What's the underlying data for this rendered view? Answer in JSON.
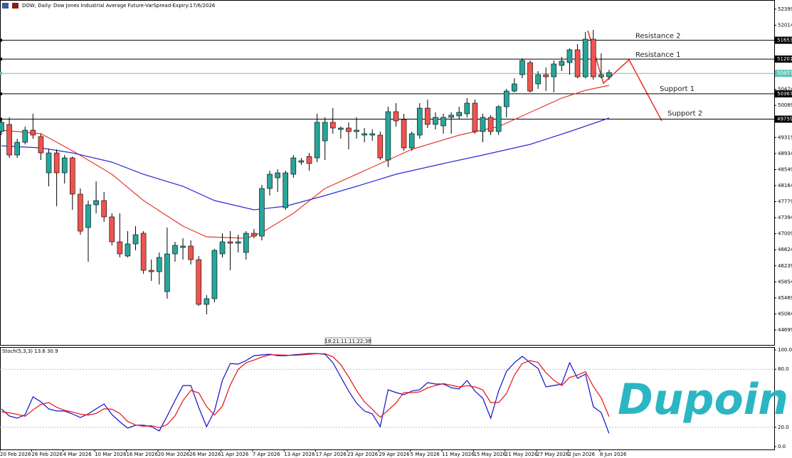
{
  "chart_data": {
    "type": "candlestick",
    "title": "DOW, Daily:  Dow Jones Industrial Average Future-VarSpread-Expiry:17/6/2026",
    "timer": "18:21:11:11:22:38",
    "categories": [
      "20 Feb 2026",
      null,
      null,
      null,
      "26 Feb 2026",
      null,
      null,
      null,
      "4 Mar 2026",
      null,
      null,
      null,
      "10 Mar 2026",
      null,
      null,
      null,
      "16 Mar 2026",
      null,
      null,
      null,
      "20 Mar 2026",
      null,
      null,
      null,
      "26 Mar 2026",
      null,
      null,
      null,
      "1 Apr 2026",
      null,
      null,
      null,
      "7 Apr 2026",
      null,
      null,
      null,
      "13 Apr 2026",
      null,
      null,
      null,
      "17 Apr 2026",
      null,
      null,
      null,
      "23 Apr 2026",
      null,
      null,
      null,
      "29 Apr 2026",
      null,
      null,
      null,
      "5 May 2026",
      null,
      null,
      null,
      "11 May 2026",
      null,
      null,
      null,
      "15 May 2026",
      null,
      null,
      null,
      "21 May 2026",
      null,
      null,
      null,
      "27 May 2026",
      null,
      null,
      null,
      "2 Jun 2026",
      null,
      null,
      null,
      "8 Jun 2026",
      null
    ],
    "ohlc": [
      [
        49461,
        49751,
        49376,
        49683
      ],
      [
        49632,
        49802,
        48829,
        48898
      ],
      [
        48898,
        49290,
        48829,
        49205
      ],
      [
        49205,
        49581,
        49154,
        49495
      ],
      [
        49495,
        49888,
        49290,
        49376
      ],
      [
        49342,
        49410,
        48778,
        48949
      ],
      [
        48471,
        49034,
        48147,
        48949
      ],
      [
        48949,
        49034,
        47669,
        48471
      ],
      [
        48471,
        48898,
        48215,
        48829
      ],
      [
        48829,
        48864,
        47583,
        47959
      ],
      [
        47959,
        48095,
        46986,
        47071
      ],
      [
        47157,
        47805,
        46337,
        47703
      ],
      [
        47703,
        48266,
        47498,
        47805
      ],
      [
        47805,
        48010,
        47293,
        47413
      ],
      [
        47413,
        47498,
        46730,
        46815
      ],
      [
        46815,
        47498,
        46440,
        46525
      ],
      [
        46474,
        47071,
        46440,
        46764
      ],
      [
        46764,
        47191,
        46610,
        46986
      ],
      [
        47020,
        47071,
        46047,
        46132
      ],
      [
        46132,
        46388,
        45876,
        46098
      ],
      [
        46098,
        46559,
        45791,
        46440
      ],
      [
        45620,
        47157,
        45450,
        46525
      ],
      [
        46525,
        46815,
        46337,
        46730
      ],
      [
        46679,
        46901,
        46388,
        46713
      ],
      [
        46713,
        46849,
        46269,
        46388
      ],
      [
        46388,
        46474,
        45279,
        45313
      ],
      [
        45313,
        45535,
        45074,
        45450
      ],
      [
        45450,
        46644,
        45364,
        46610
      ],
      [
        46525,
        47020,
        46440,
        46815
      ],
      [
        46815,
        47071,
        46132,
        46781
      ],
      [
        46781,
        46986,
        46559,
        46815
      ],
      [
        46559,
        47071,
        46388,
        47020
      ],
      [
        47020,
        47122,
        46901,
        46952
      ],
      [
        46952,
        48181,
        46849,
        48095
      ],
      [
        48095,
        48522,
        47925,
        48437
      ],
      [
        48351,
        48556,
        48010,
        48471
      ],
      [
        47635,
        48522,
        47583,
        48471
      ],
      [
        48437,
        48898,
        48351,
        48829
      ],
      [
        48727,
        48829,
        48659,
        48761
      ],
      [
        48864,
        48949,
        48522,
        48693
      ],
      [
        48829,
        49888,
        48727,
        49683
      ],
      [
        49239,
        49802,
        48778,
        49683
      ],
      [
        49683,
        50024,
        49410,
        49546
      ],
      [
        49512,
        49581,
        49290,
        49546
      ],
      [
        49546,
        49683,
        49034,
        49461
      ],
      [
        49461,
        49802,
        49290,
        49495
      ],
      [
        49376,
        49546,
        49205,
        49410
      ],
      [
        49376,
        49512,
        49239,
        49410
      ],
      [
        49376,
        49461,
        48778,
        48829
      ],
      [
        48778,
        50058,
        48608,
        49939
      ],
      [
        49939,
        50144,
        49581,
        49717
      ],
      [
        49751,
        49888,
        49000,
        49068
      ],
      [
        49068,
        49461,
        49000,
        49410
      ],
      [
        49376,
        50144,
        49290,
        50024
      ],
      [
        50024,
        50229,
        49546,
        49632
      ],
      [
        49632,
        49922,
        49512,
        49802
      ],
      [
        49598,
        49888,
        49410,
        49802
      ],
      [
        49802,
        49922,
        49410,
        49854
      ],
      [
        49837,
        50058,
        49751,
        49922
      ],
      [
        49888,
        50263,
        49802,
        50144
      ],
      [
        50144,
        50229,
        49410,
        49461
      ],
      [
        49461,
        49888,
        49205,
        49802
      ],
      [
        49802,
        49854,
        49376,
        49461
      ],
      [
        49461,
        50093,
        49376,
        50058
      ],
      [
        50058,
        50485,
        49802,
        50434
      ],
      [
        50434,
        50741,
        50400,
        50605
      ],
      [
        50827,
        51219,
        50741,
        51168
      ],
      [
        51117,
        51168,
        50400,
        50434
      ],
      [
        50605,
        50912,
        50485,
        50827
      ],
      [
        50827,
        50997,
        50434,
        50775
      ],
      [
        50775,
        51168,
        50400,
        51083
      ],
      [
        51049,
        51253,
        50912,
        51151
      ],
      [
        51117,
        51458,
        50827,
        51424
      ],
      [
        51424,
        51561,
        50741,
        50775
      ],
      [
        50775,
        51851,
        50741,
        51680
      ],
      [
        51680,
        51902,
        50707,
        50775
      ],
      [
        50775,
        51339,
        50741,
        50827
      ],
      [
        50775,
        50946,
        50707,
        50878
      ]
    ],
    "up_color": "#26a69a",
    "down_color": "#ef5350",
    "ylim": [
      44340,
      52619
    ],
    "yticks": [
      52399,
      52014,
      50474,
      50089,
      49319,
      48934,
      48549,
      48164,
      47779,
      47394,
      47009,
      46624,
      46239,
      45854,
      45469,
      45084,
      44699
    ],
    "lines": [
      {
        "color": "#e8392f",
        "x": [
          0,
          5,
          9,
          14,
          18,
          23,
          26,
          31,
          33,
          37,
          41,
          47,
          52,
          58,
          63,
          67,
          71,
          74,
          77
        ],
        "values": [
          49495,
          49410,
          49000,
          48437,
          47805,
          47191,
          46935,
          46901,
          47037,
          47498,
          48095,
          48608,
          49034,
          49376,
          49581,
          49922,
          50263,
          50451,
          50571
        ]
      },
      {
        "color": "#2b2bd6",
        "x": [
          0,
          5,
          9,
          14,
          18,
          23,
          27,
          32,
          36,
          41,
          45,
          50,
          56,
          61,
          67,
          72,
          77
        ],
        "values": [
          49120,
          49068,
          48949,
          48727,
          48437,
          48147,
          47805,
          47583,
          47669,
          47925,
          48147,
          48437,
          48693,
          48898,
          49154,
          49461,
          49785
        ]
      }
    ],
    "levels": [
      {
        "value": 51653,
        "name": "Resistance 2",
        "color": "#000000"
      },
      {
        "value": 51201,
        "name": "Resistance 1",
        "color": "#000000"
      },
      {
        "value": 50857,
        "color": "#5fc2b4"
      },
      {
        "value": 50367,
        "name": "Support 1",
        "color": "#000000"
      },
      {
        "value": 49759,
        "name": "Support 2",
        "color": "#000000"
      }
    ],
    "stochastic": {
      "type": "line",
      "title": "Stoch(5,3,3) 13.6 30.9",
      "ylim": [
        -3,
        103
      ],
      "yticks": [
        {
          "value": 100,
          "label": "100.0"
        },
        {
          "value": 80,
          "label": "80.0"
        },
        {
          "value": 20,
          "label": "20.0"
        },
        {
          "value": 0,
          "label": "0.0"
        }
      ],
      "levels": [
        80,
        20
      ],
      "series": [
        {
          "color": "#1010c8",
          "values": [
            39.0,
            31.6,
            29.4,
            33.1,
            51.5,
            46.3,
            39.0,
            36.8,
            36.8,
            33.8,
            30.1,
            33.8,
            39.0,
            44.1,
            33.1,
            25.7,
            19.1,
            22.1,
            22.1,
            20.6,
            16.2,
            31.6,
            47.8,
            63.2,
            63.2,
            40.4,
            20.6,
            36.8,
            68.4,
            86.0,
            85.3,
            89.0,
            94.1,
            94.9,
            95.6,
            94.1,
            94.1,
            94.9,
            95.6,
            96.3,
            96.3,
            95.6,
            86.8,
            72.1,
            57.4,
            44.9,
            36.8,
            33.8,
            20.6,
            58.8,
            55.9,
            53.7,
            57.4,
            58.8,
            66.2,
            64.7,
            64.7,
            61.0,
            59.6,
            68.4,
            57.4,
            50.0,
            29.4,
            57.4,
            77.9,
            86.8,
            93.4,
            86.8,
            80.9,
            61.8,
            63.2,
            64.7,
            86.8,
            70.6,
            75.0,
            41.2,
            35.3,
            13.6
          ]
        },
        {
          "color": "#e81010",
          "values": [
            36,
            35,
            33.3,
            31.4,
            38.0,
            43.6,
            45.6,
            40.7,
            37.5,
            35.8,
            33.6,
            32.6,
            34.3,
            39.0,
            38.7,
            34.3,
            26.0,
            22.3,
            21.1,
            21.6,
            19.6,
            22.8,
            31.9,
            47.5,
            58.1,
            55.6,
            41.4,
            32.6,
            41.9,
            63.7,
            79.9,
            86.8,
            89.5,
            92.7,
            94.9,
            94.9,
            94.6,
            94.4,
            94.9,
            95.6,
            96.1,
            96.1,
            92.9,
            84.8,
            72.1,
            58.1,
            46.4,
            38.5,
            30.4,
            37.7,
            45.1,
            56.1,
            55.7,
            56.6,
            60.8,
            63.2,
            65.2,
            63.5,
            61.8,
            63.0,
            61.8,
            58.6,
            45.6,
            45.6,
            54.9,
            74.0,
            86.0,
            89.0,
            87.0,
            76.5,
            68.6,
            63.2,
            71.6,
            74.0,
            77.5,
            62.3,
            50.5,
            30.9
          ]
        }
      ]
    }
  },
  "logo": "Dupoin"
}
